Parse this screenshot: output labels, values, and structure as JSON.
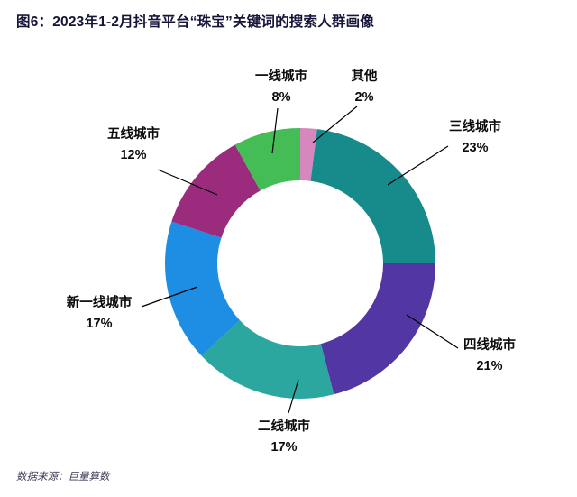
{
  "title": "图6：2023年1-2月抖音平台“珠宝”关键词的搜索人群画像",
  "source": "数据来源：巨量算数",
  "chart_data": {
    "type": "pie",
    "subtype": "donut",
    "title": "2023年1-2月抖音平台“珠宝”关键词的搜索人群画像",
    "direction": "clockwise",
    "start_angle_deg": 0,
    "legend_position": "callouts",
    "units": "percent",
    "segments": [
      {
        "label": "其他",
        "value": 2,
        "pct_label": "2%",
        "color": "#d687bd"
      },
      {
        "label": "三线城市",
        "value": 23,
        "pct_label": "23%",
        "color": "#178b8b"
      },
      {
        "label": "四线城市",
        "value": 21,
        "pct_label": "21%",
        "color": "#5236a3"
      },
      {
        "label": "二线城市",
        "value": 17,
        "pct_label": "17%",
        "color": "#2ca79f"
      },
      {
        "label": "新一线城市",
        "value": 17,
        "pct_label": "17%",
        "color": "#1d8ee4"
      },
      {
        "label": "五线城市",
        "value": 12,
        "pct_label": "12%",
        "color": "#9a2b7d"
      },
      {
        "label": "一线城市",
        "value": 8,
        "pct_label": "8%",
        "color": "#44bd57"
      }
    ]
  }
}
